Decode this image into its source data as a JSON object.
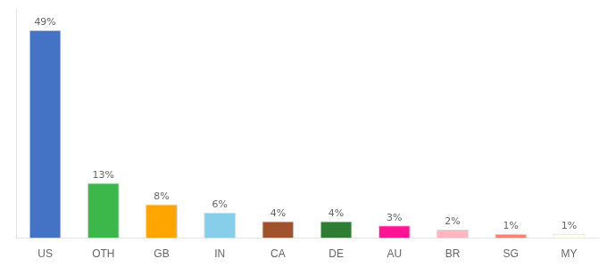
{
  "chart_data": {
    "type": "bar",
    "categories": [
      "US",
      "OTH",
      "GB",
      "IN",
      "CA",
      "DE",
      "AU",
      "BR",
      "SG",
      "MY"
    ],
    "values": [
      49,
      13,
      8,
      6,
      4,
      4,
      3,
      2,
      1,
      1
    ],
    "value_labels": [
      "49%",
      "13%",
      "8%",
      "6%",
      "4%",
      "4%",
      "3%",
      "2%",
      "1%",
      "1%"
    ],
    "colors": [
      "#4472C4",
      "#3CB84A",
      "#FFA500",
      "#87CEEB",
      "#A0522D",
      "#2E7D32",
      "#FF1493",
      "#FFB6C1",
      "#FA8072",
      "#FFFFF0"
    ],
    "ylim": [
      0,
      54
    ],
    "grid": false,
    "data_labels": true,
    "tick_labels": "x"
  }
}
